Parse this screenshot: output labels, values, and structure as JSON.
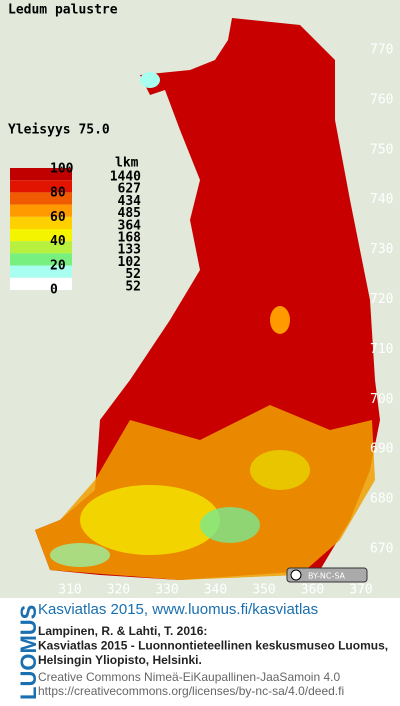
{
  "title": "Ledum palustre",
  "frequency": "Yleisyys 75.0",
  "legend": {
    "scale_labels": [
      100,
      80,
      60,
      40,
      20,
      0
    ],
    "count_header": "lkm",
    "counts": [
      1440,
      627,
      434,
      485,
      364,
      168,
      133,
      102,
      52,
      52
    ],
    "colors": [
      "#c00000",
      "#e01400",
      "#f05a00",
      "#ff9a00",
      "#ffd000",
      "#f4f400",
      "#b8f040",
      "#78f080",
      "#a8fff0",
      "#ffffff"
    ]
  },
  "axes": {
    "northing": [
      770,
      760,
      750,
      740,
      730,
      720,
      710,
      700,
      690,
      680,
      670
    ],
    "easting": [
      310,
      320,
      330,
      340,
      350,
      360,
      370
    ]
  },
  "license_badge": "BY-NC-SA",
  "footer": {
    "logo": "LUOMUS",
    "link": "Kasviatlas 2015, www.luomus.fi/kasviatlas",
    "citation": [
      "Lampinen, R. & Lahti, T. 2016:",
      "Kasviatlas 2015 - Luonnontieteellinen keskusmuseo Luomus,",
      "Helsingin Yliopisto, Helsinki."
    ],
    "license": [
      "Creative Commons Nimeä-EiKaupallinen-JaaSamoin 4.0",
      "https://creativecommons.org/licenses/by-nc-sa/4.0/deed.fi"
    ]
  }
}
